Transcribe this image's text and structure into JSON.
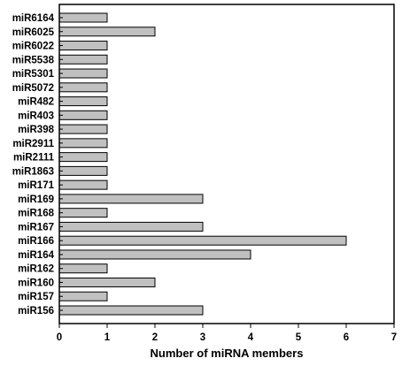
{
  "chart_data": {
    "type": "bar",
    "orientation": "horizontal",
    "categories": [
      "miR6164",
      "miR6025",
      "miR6022",
      "miR5538",
      "miR5301",
      "miR5072",
      "miR482",
      "miR403",
      "miR398",
      "miR2911",
      "miR2111",
      "miR1863",
      "miR171",
      "miR169",
      "miR168",
      "miR167",
      "miR166",
      "miR164",
      "miR162",
      "miR160",
      "miR157",
      "miR156"
    ],
    "values": [
      1,
      2,
      1,
      1,
      1,
      1,
      1,
      1,
      1,
      1,
      1,
      1,
      1,
      3,
      1,
      3,
      6,
      4,
      1,
      2,
      1,
      3
    ],
    "xlabel": "Number of miRNA members",
    "ylabel": "",
    "xlim": [
      0,
      7
    ],
    "xticks": [
      "0",
      "1",
      "2",
      "3",
      "4",
      "5",
      "6",
      "7"
    ],
    "grid": false,
    "bar_color": "#c0c0c0",
    "bar_edge_color": "#000000"
  }
}
